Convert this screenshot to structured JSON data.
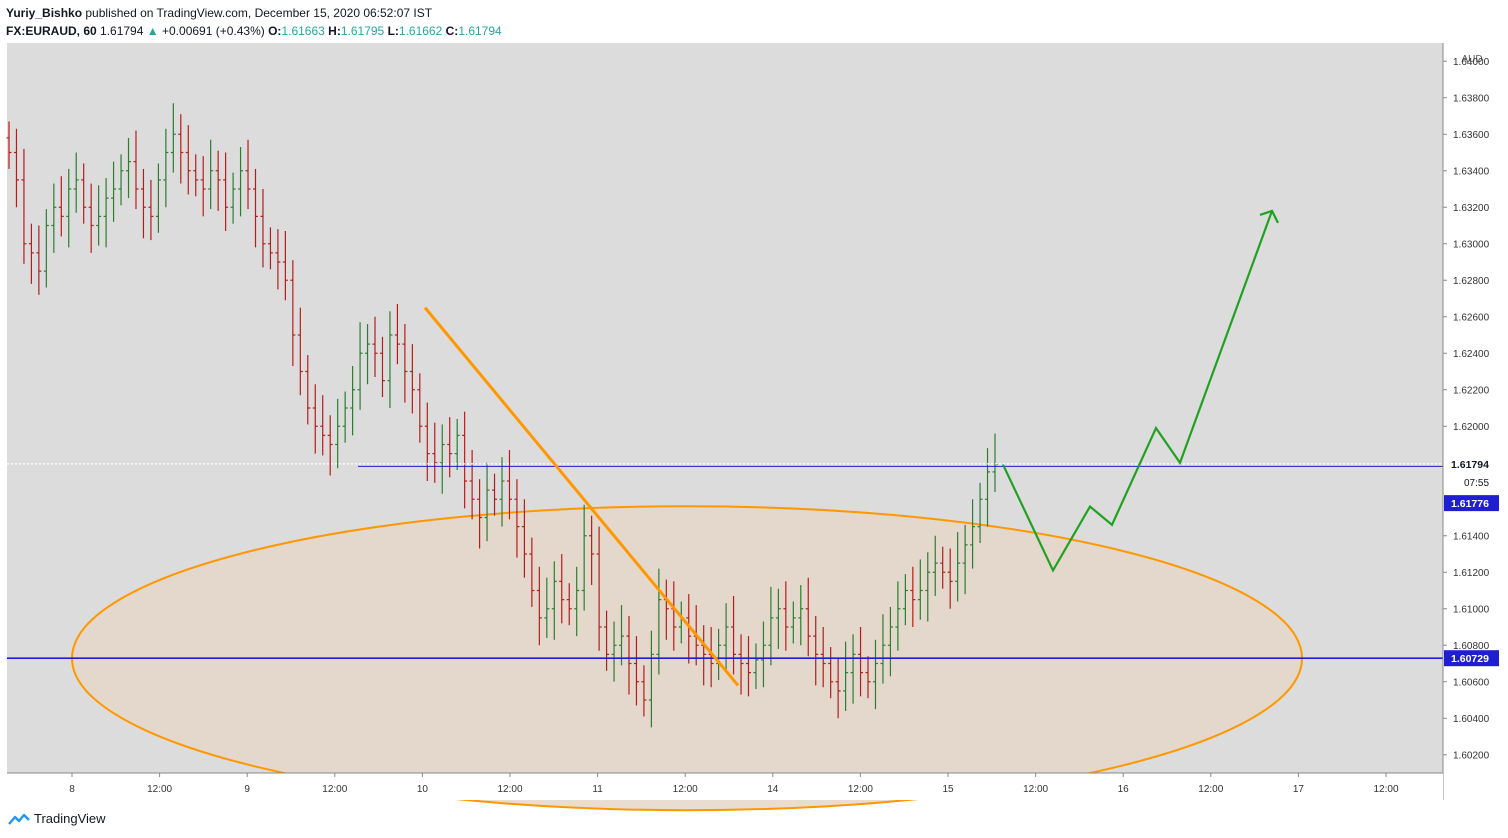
{
  "header": {
    "author": "Yuriy_Bishko",
    "published": "published on TradingView.com, December 15, 2020 06:52:07 IST",
    "symbol": "FX:EURAUD, 60",
    "last": "1.61794",
    "change": "+0.00691 (+0.43%)",
    "o_label": "O:",
    "o_val": "1.61663",
    "h_label": "H:",
    "h_val": "1.61795",
    "l_label": "L:",
    "l_val": "1.61662",
    "c_label": "C:",
    "c_val": "1.61794"
  },
  "footer": {
    "brand": "TradingView"
  },
  "chart_data": {
    "type": "ohlc",
    "symbol": "FX:EURAUD",
    "interval": "60",
    "currency_label": "AUD",
    "y_ticks": [
      "1.64000",
      "1.63800",
      "1.63600",
      "1.63400",
      "1.63200",
      "1.63000",
      "1.62800",
      "1.62600",
      "1.62400",
      "1.62200",
      "1.62000",
      "1.61400",
      "1.61200",
      "1.61000",
      "1.60800",
      "1.60600",
      "1.60400",
      "1.60200"
    ],
    "x_ticks": [
      "8",
      "12:00",
      "9",
      "12:00",
      "10",
      "12:00",
      "11",
      "12:00",
      "14",
      "12:00",
      "15",
      "12:00",
      "16",
      "12:00",
      "17",
      "12:00"
    ],
    "ylim": [
      1.601,
      1.641
    ],
    "price_labels": {
      "last": "1.61794",
      "countdown": "07:55",
      "bid": "1.61776",
      "level": "1.60729"
    },
    "levels": {
      "resistance": 1.6178,
      "support": 1.60729
    },
    "series_close": [
      1.635,
      1.6335,
      1.63,
      1.6295,
      1.6285,
      1.631,
      1.632,
      1.6315,
      1.633,
      1.6335,
      1.632,
      1.631,
      1.6315,
      1.6325,
      1.633,
      1.634,
      1.6345,
      1.633,
      1.632,
      1.6315,
      1.6335,
      1.635,
      1.636,
      1.635,
      1.634,
      1.6335,
      1.633,
      1.634,
      1.6335,
      1.632,
      1.633,
      1.634,
      1.633,
      1.6315,
      1.63,
      1.6295,
      1.629,
      1.628,
      1.625,
      1.623,
      1.621,
      1.62,
      1.6195,
      1.619,
      1.62,
      1.621,
      1.622,
      1.624,
      1.6245,
      1.624,
      1.6225,
      1.625,
      1.6245,
      1.623,
      1.622,
      1.62,
      1.6185,
      1.618,
      1.619,
      1.6185,
      1.6195,
      1.617,
      1.616,
      1.615,
      1.6165,
      1.616,
      1.617,
      1.616,
      1.6145,
      1.613,
      1.611,
      1.6095,
      1.61,
      1.6115,
      1.6105,
      1.61,
      1.611,
      1.614,
      1.613,
      1.609,
      1.6075,
      1.608,
      1.6085,
      1.607,
      1.606,
      1.605,
      1.6075,
      1.6105,
      1.61,
      1.609,
      1.6095,
      1.6085,
      1.608,
      1.6075,
      1.607,
      1.608,
      1.609,
      1.6075,
      1.607,
      1.6065,
      1.6072,
      1.608,
      1.6095,
      1.61,
      1.609,
      1.6095,
      1.61,
      1.6085,
      1.6075,
      1.607,
      1.606,
      1.6055,
      1.6065,
      1.6075,
      1.6065,
      1.606,
      1.607,
      1.608,
      1.609,
      1.61,
      1.611,
      1.6105,
      1.611,
      1.612,
      1.6125,
      1.612,
      1.6115,
      1.6125,
      1.6135,
      1.6145,
      1.616,
      1.6175,
      1.6179
    ],
    "projection_path": [
      [
        1.6179,
        0
      ],
      [
        1.6121,
        1
      ],
      [
        1.6156,
        2
      ],
      [
        1.6146,
        3
      ],
      [
        1.6199,
        4
      ],
      [
        1.618,
        5
      ],
      [
        1.6318,
        6
      ]
    ],
    "colors": {
      "up": "#2e7d32",
      "down": "#b71c1c",
      "orange": "#ff9800",
      "blue": "#1f1fd1",
      "green": "#21a121",
      "plot_bg": "#dcdcdc",
      "ellipse_fill": "#e4d7c8"
    }
  }
}
